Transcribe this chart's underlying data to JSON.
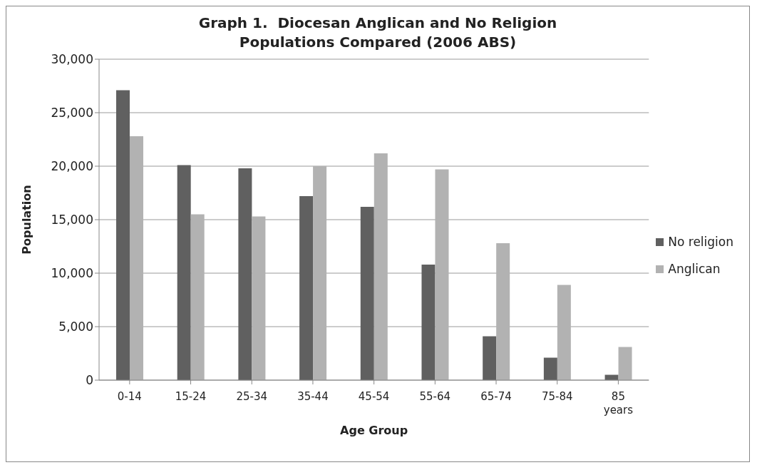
{
  "chart_data": {
    "type": "bar",
    "title": "Graph 1.  Diocesan Anglican and No Religion Populations Compared (2006 ABS)",
    "xlabel": "Age Group",
    "ylabel": "Population",
    "categories": [
      "0-14",
      "15-24",
      "25-34",
      "35-44",
      "45-54",
      "55-64",
      "65-74",
      "75-84",
      "85 years"
    ],
    "series": [
      {
        "name": "No religion",
        "color": "#606060",
        "values": [
          27100,
          20100,
          19800,
          17200,
          16200,
          10800,
          4100,
          2100,
          500
        ]
      },
      {
        "name": "Anglican",
        "color": "#b2b2b2",
        "values": [
          22800,
          15500,
          15300,
          20000,
          21200,
          19700,
          12800,
          8900,
          3100
        ]
      }
    ],
    "ylim": [
      0,
      30000
    ],
    "yticks": [
      0,
      {
        "value": 5000,
        "label": "5,000"
      },
      {
        "value": 10000,
        "label": "10,000"
      },
      {
        "value": 15000,
        "label": "15,000"
      },
      {
        "value": 20000,
        "label": "20,000"
      },
      {
        "value": 25000,
        "label": "25,000"
      },
      {
        "value": 30000,
        "label": "30,000"
      }
    ],
    "grid": "y",
    "legend": "right"
  }
}
